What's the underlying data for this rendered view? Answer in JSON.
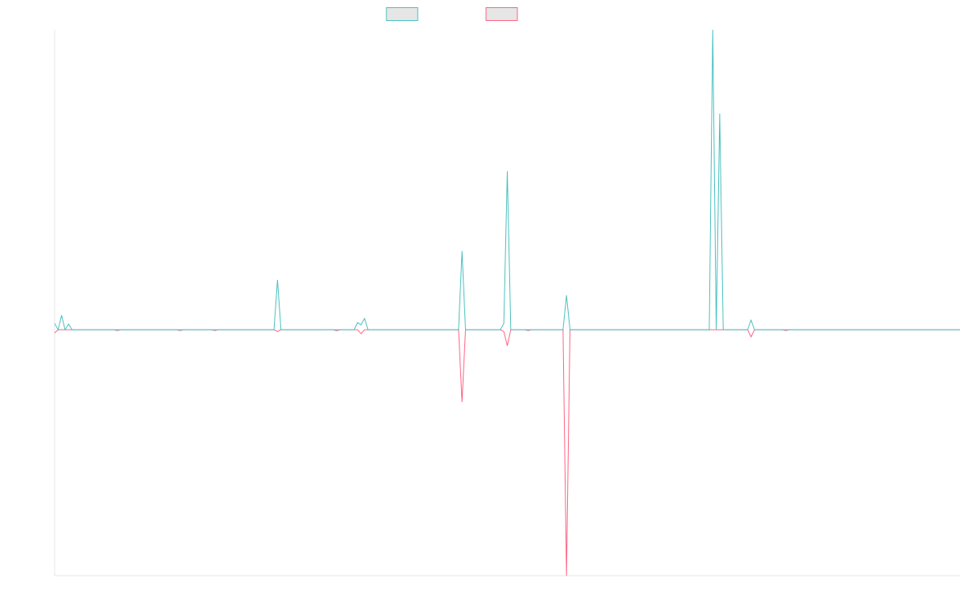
{
  "chart_data": {
    "type": "line",
    "x": [
      0,
      1,
      2,
      3,
      4,
      5,
      17,
      18,
      19,
      35,
      36,
      37,
      45,
      46,
      47,
      63,
      64,
      65,
      80,
      81,
      82,
      86,
      87,
      88,
      89,
      90,
      116,
      117,
      118,
      128,
      129,
      130,
      131,
      135,
      136,
      137,
      146,
      147,
      148,
      188,
      189,
      190,
      191,
      192,
      199,
      200,
      201,
      209,
      210,
      211,
      260
    ],
    "xlim": [
      0,
      260
    ],
    "ylim": [
      -100,
      122
    ],
    "series": [
      {
        "color": "#ff6384",
        "values": [
          -1.3,
          0,
          0,
          0,
          0,
          0,
          0,
          -0.3,
          0,
          0,
          -0.3,
          0,
          0,
          -0.3,
          0,
          0,
          -0.7,
          0,
          0,
          -0.4,
          0,
          0,
          0,
          -1.6,
          0,
          0,
          0,
          -29.4,
          0,
          0,
          -0.7,
          -6.5,
          0,
          0,
          -0.3,
          0,
          0,
          -100,
          0,
          0,
          0,
          0,
          0,
          0,
          0,
          -2.9,
          0,
          0,
          -0.3,
          0,
          0
        ]
      },
      {
        "color": "#4bc0c0",
        "values": [
          2.6,
          0,
          5.9,
          0,
          2.3,
          0,
          0,
          0,
          0,
          0,
          0,
          0,
          0,
          0,
          0,
          0,
          20.3,
          0,
          0,
          0,
          0,
          0,
          2.9,
          2.0,
          4.6,
          0,
          0,
          32,
          0,
          0,
          2.6,
          64.4,
          0,
          0,
          0,
          0,
          0,
          14,
          0,
          0,
          122,
          0,
          87.9,
          0,
          0,
          3.9,
          0,
          0,
          0,
          0,
          0
        ]
      }
    ]
  }
}
